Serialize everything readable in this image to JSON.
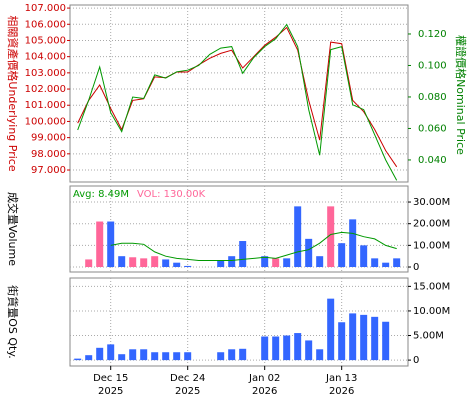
{
  "chart_data": [
    {
      "type": "line",
      "ylabel": "相關資產價格Underlying Price",
      "y2label": "權證價格Nominal Price",
      "ylim": [
        96.26,
        107.19
      ],
      "yticks": [
        {
          "value": 97,
          "label": "97.000"
        },
        {
          "value": 98,
          "label": "98.000"
        },
        {
          "value": 99,
          "label": "99.000"
        },
        {
          "value": 100,
          "label": "100.000"
        },
        {
          "value": 101,
          "label": "101.000"
        },
        {
          "value": 102,
          "label": "102.000"
        },
        {
          "value": 103,
          "label": "103.000"
        },
        {
          "value": 104,
          "label": "104.000"
        },
        {
          "value": 105,
          "label": "105.000"
        },
        {
          "value": 106,
          "label": "106.000"
        },
        {
          "value": 107,
          "label": "107.000"
        }
      ],
      "y2lim": [
        0.026,
        0.1384
      ],
      "y2ticks": [
        {
          "value": 0.04,
          "label": "0.040"
        },
        {
          "value": 0.06,
          "label": "0.060"
        },
        {
          "value": 0.08,
          "label": "0.080"
        },
        {
          "value": 0.1,
          "label": "0.100"
        },
        {
          "value": 0.12,
          "label": "0.120"
        }
      ],
      "y_color": "#cc0000",
      "y2_color": "#008000",
      "grid": true,
      "series": [
        {
          "axis": "y",
          "color": "#cc0000",
          "values": [
            99.9,
            101.3,
            102.25,
            100.8,
            99.5,
            101.3,
            101.4,
            102.75,
            102.7,
            103.05,
            103.05,
            103.5,
            103.9,
            104.2,
            104.4,
            103.3,
            104.0,
            104.7,
            105.2,
            105.8,
            104.4,
            101.3,
            98.85,
            104.9,
            104.8,
            101.3,
            100.6,
            99.5,
            98.2,
            97.2
          ]
        },
        {
          "axis": "y2",
          "color": "#009900",
          "values": [
            0.059,
            0.078,
            0.099,
            0.07,
            0.058,
            0.08,
            0.079,
            0.094,
            0.092,
            0.096,
            0.097,
            0.1,
            0.107,
            0.111,
            0.112,
            0.095,
            0.105,
            0.112,
            0.117,
            0.126,
            0.112,
            0.072,
            0.043,
            0.11,
            0.112,
            0.075,
            0.072,
            0.056,
            0.04,
            0.027
          ]
        }
      ]
    },
    {
      "type": "bar",
      "ylabel": "成交量Volume",
      "ylim": [
        -2300000,
        37400000
      ],
      "yticks": [
        0,
        {
          "value": 10000000,
          "label": "10.00M"
        },
        {
          "value": 20000000,
          "label": "20.00M"
        },
        {
          "value": 30000000,
          "label": "30.00M"
        }
      ],
      "grid": true,
      "annotations": [
        {
          "text": "Avg: 8.49M",
          "color": "#009900"
        },
        {
          "text": "VOL: 130.00K",
          "color": "#ff6699"
        }
      ],
      "values": [
        null,
        3500000,
        21000000,
        21000000,
        5000000,
        4500000,
        4000000,
        5000000,
        3500000,
        2000000,
        500000,
        null,
        null,
        3000000,
        5000000,
        12000000,
        null,
        5000000,
        4000000,
        4000000,
        28000000,
        13000000,
        5000000,
        28000000,
        11000000,
        22000000,
        10000000,
        4000000,
        2000000,
        4000000
      ],
      "colors": [
        null,
        "#ff6699",
        "#ff6699",
        "#3366ff",
        "#3366ff",
        "#ff6699",
        "#ff6699",
        "#ff6699",
        "#3366ff",
        "#3366ff",
        "#3366ff",
        null,
        null,
        "#3366ff",
        "#3366ff",
        "#3366ff",
        null,
        "#3366ff",
        "#ff6699",
        "#3366ff",
        "#3366ff",
        "#3366ff",
        "#3366ff",
        "#ff6699",
        "#3366ff",
        "#3366ff",
        "#3366ff",
        "#3366ff",
        "#3366ff",
        "#3366ff"
      ],
      "avg_line": {
        "color": "#009900",
        "values": [
          null,
          null,
          null,
          10000000,
          11000000,
          11000000,
          10500000,
          7000000,
          5000000,
          4000000,
          3500000,
          3000000,
          3000000,
          3000000,
          3000000,
          3500000,
          4000000,
          4500000,
          4000000,
          5500000,
          7000000,
          8000000,
          11000000,
          15000000,
          16000000,
          15500000,
          14000000,
          13000000,
          10000000,
          8500000
        ]
      }
    },
    {
      "type": "bar",
      "ylabel": "街貨量OS Qty.",
      "ylim": [
        -1200000,
        16700000
      ],
      "yticks": [
        0,
        {
          "value": 5000000,
          "label": "5.00M"
        },
        {
          "value": 10000000,
          "label": "10.00M"
        },
        {
          "value": 15000000,
          "label": "15.00M"
        }
      ],
      "grid": true,
      "color": "#3366ff",
      "values": [
        300000,
        1000000,
        2500000,
        3200000,
        1200000,
        2200000,
        2200000,
        1600000,
        1600000,
        1600000,
        1600000,
        null,
        null,
        1600000,
        2200000,
        2300000,
        null,
        4800000,
        4800000,
        5000000,
        5500000,
        4000000,
        2200000,
        12500000,
        7700000,
        9500000,
        9200000,
        8800000,
        7800000,
        null
      ],
      "xlim": [
        -0.7,
        30.03
      ],
      "xticks": [
        {
          "value": 3,
          "label": "Dec 15"
        },
        {
          "value": 10,
          "label": "Dec 24"
        },
        {
          "value": 17,
          "label": "Jan 02"
        },
        {
          "value": 24,
          "label": "Jan 13"
        }
      ],
      "xtick_years": [
        "2025",
        "2025",
        "2026",
        "2026"
      ]
    }
  ]
}
